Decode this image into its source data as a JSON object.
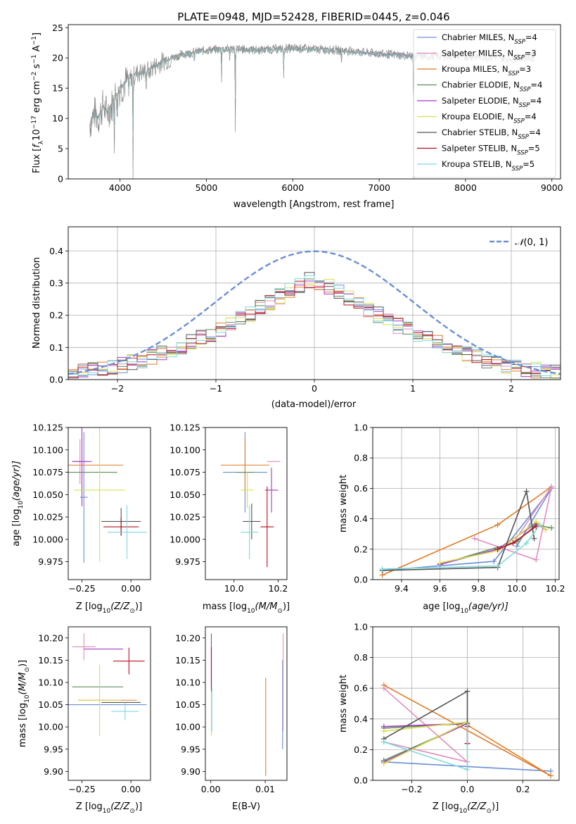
{
  "figure": {
    "title": "PLATE=0948, MJD=52428, FIBERID=0445, z=0.046"
  },
  "colors": {
    "c1": "#6a8fd6",
    "c2": "#e07b25",
    "c3": "#e48cbd",
    "c4": "#5f8d5f",
    "c5": "#a23bc4",
    "c6": "#d8e04b",
    "c7": "#545454",
    "c8": "#b8101d",
    "c9": "#7fd8dc",
    "spec_gray": "#808080"
  },
  "chart_data": [
    {
      "id": "spectrum",
      "type": "line",
      "xlabel": "wavelength [Angstrom, rest frame]",
      "ylabel_parts": [
        "Flux [",
        "f",
        "λ",
        "10",
        "−17",
        " erg cm",
        "−2",
        " s",
        "−1",
        " A",
        "−1",
        "]"
      ],
      "xlim": [
        3400,
        9100
      ],
      "ylim": [
        0,
        25.5
      ],
      "xticks": [
        4000,
        5000,
        6000,
        7000,
        8000,
        9000
      ],
      "yticks": [
        0,
        5,
        10,
        15,
        20,
        25
      ],
      "legend_placement": "right",
      "legend": [
        {
          "pre": "Chabrier MILES, N",
          "sub": "SSP",
          "post": "=4",
          "color": "c1"
        },
        {
          "pre": "Salpeter MILES, N",
          "sub": "SSP",
          "post": "=3",
          "color": "c3"
        },
        {
          "pre": "Kroupa MILES, N",
          "sub": "SSP",
          "post": "=3",
          "color": "c2"
        },
        {
          "pre": "Chabrier ELODIE, N",
          "sub": "SSP",
          "post": "=4",
          "color": "c4"
        },
        {
          "pre": "Salpeter ELODIE, N",
          "sub": "SSP",
          "post": "=4",
          "color": "c5"
        },
        {
          "pre": "Kroupa ELODIE, N",
          "sub": "SSP",
          "post": "=4",
          "color": "c6"
        },
        {
          "pre": "Chabrier STELIB, N",
          "sub": "SSP",
          "post": "=4",
          "color": "c7"
        },
        {
          "pre": "Salpeter STELIB, N",
          "sub": "SSP",
          "post": "=5",
          "color": "c8"
        },
        {
          "pre": "Kroupa STELIB, N",
          "sub": "SSP",
          "post": "=5",
          "color": "c9"
        }
      ],
      "continuum": {
        "x": [
          3650,
          3700,
          3750,
          3800,
          3850,
          3900,
          3950,
          4000,
          4100,
          4200,
          4300,
          4500,
          4700,
          5000,
          5300,
          5600,
          6000,
          6500,
          7000,
          7400,
          8000,
          8500,
          8800
        ],
        "y": [
          9,
          11,
          10,
          12,
          11,
          12,
          14,
          15,
          16.5,
          17.5,
          17.8,
          19.5,
          20.5,
          21.3,
          21.5,
          21.3,
          21.6,
          21.3,
          20.7,
          20.3,
          20.3,
          20.0,
          20.1
        ]
      },
      "model_extents": {
        "start": 3650,
        "end_miles": 7400,
        "end_elodie": 6800
      },
      "absorption": [
        {
          "x": 3934,
          "d": 8
        },
        {
          "x": 3969,
          "d": 7
        },
        {
          "x": 4102,
          "d": 4
        },
        {
          "x": 4150,
          "d": 17
        },
        {
          "x": 4304,
          "d": 4
        },
        {
          "x": 4341,
          "d": 3
        },
        {
          "x": 4861,
          "d": 2
        },
        {
          "x": 5175,
          "d": 5
        },
        {
          "x": 5270,
          "d": 2
        },
        {
          "x": 5335,
          "d": 14
        },
        {
          "x": 5895,
          "d": 5
        },
        {
          "x": 6563,
          "d": 3
        },
        {
          "x": 7400,
          "d": 20
        }
      ]
    },
    {
      "id": "residuals",
      "type": "step",
      "xlabel": "(data-model)/error",
      "ylabel": "Normed distribution",
      "xlim": [
        -2.5,
        2.5
      ],
      "ylim": [
        0,
        0.475
      ],
      "xticks": [
        -2,
        -1,
        0,
        1,
        2
      ],
      "yticks": [
        0.0,
        0.1,
        0.2,
        0.3,
        0.4
      ],
      "grid": true,
      "legend_placement": "top-right",
      "legend": [
        {
          "label_pre": "𝒩",
          "label_post": "(0, 1)",
          "color": "c1",
          "style": "dashed"
        }
      ],
      "bin_width": 0.1,
      "bin_start": -2.5,
      "base_hist": [
        0.023,
        0.027,
        0.03,
        0.035,
        0.038,
        0.045,
        0.052,
        0.06,
        0.07,
        0.08,
        0.093,
        0.105,
        0.118,
        0.13,
        0.143,
        0.157,
        0.172,
        0.188,
        0.205,
        0.222,
        0.24,
        0.258,
        0.275,
        0.293,
        0.31,
        0.328,
        0.345,
        0.36,
        0.372,
        0.384,
        0.392,
        0.398,
        0.4,
        0.4,
        0.396,
        0.391,
        0.383,
        0.372,
        0.36,
        0.346,
        0.331,
        0.314,
        0.297,
        0.279,
        0.26,
        0.24,
        0.22,
        0.201,
        0.182,
        0.165
      ]
    },
    {
      "id": "age_vs_Z",
      "type": "errorbar",
      "xlabel_pre": "Z [log",
      "xlabel_sub": "10",
      "xlabel_mid": "(Z/Z",
      "xlabel_sun": "⊙",
      "xlabel_post": ")]",
      "ylabel_pre": "age  [log",
      "ylabel_sub": "10",
      "ylabel_post": "(age/yr)]",
      "xlim": [
        -0.32,
        0.1
      ],
      "ylim": [
        9.955,
        10.125
      ],
      "xticks": [
        -0.25,
        0.0
      ],
      "yticks": [
        9.975,
        10.0,
        10.025,
        10.05,
        10.075,
        10.1,
        10.125
      ],
      "points": [
        {
          "x": -0.24,
          "xerr": 0.02,
          "y": 10.047,
          "yerr": 0.073,
          "color": "c1"
        },
        {
          "x": -0.18,
          "xerr": 0.14,
          "y": 10.083,
          "yerr": 0.0,
          "color": "c2"
        },
        {
          "x": -0.26,
          "xerr": 0.04,
          "y": 10.087,
          "yerr": 0.025,
          "color": "c3"
        },
        {
          "x": -0.22,
          "xerr": 0.15,
          "y": 10.075,
          "yerr": 0.0,
          "color": "c4"
        },
        {
          "x": -0.25,
          "xerr": 0.05,
          "y": 10.087,
          "yerr": 0.05,
          "color": "c5"
        },
        {
          "x": -0.16,
          "xerr": 0.13,
          "y": 10.055,
          "yerr": 0.08,
          "color": "c6"
        },
        {
          "x": -0.05,
          "xerr": 0.1,
          "y": 10.02,
          "yerr": 0.015,
          "color": "c7"
        },
        {
          "x": -0.05,
          "xerr": 0.09,
          "y": 10.014,
          "yerr": 0.01,
          "color": "c8"
        },
        {
          "x": -0.02,
          "xerr": 0.1,
          "y": 10.008,
          "yerr": 0.03,
          "color": "c9"
        }
      ]
    },
    {
      "id": "age_vs_mass",
      "type": "errorbar",
      "xlabel_pre": "mass [log",
      "xlabel_sub": "10",
      "xlabel_mid": "(M/M",
      "xlabel_sun": "⊙",
      "xlabel_post": ")]",
      "xlim": [
        9.87,
        10.24
      ],
      "ylim": [
        9.955,
        10.125
      ],
      "xticks": [
        10.0,
        10.2
      ],
      "yticks": [
        9.975,
        10.0,
        10.025,
        10.05,
        10.075,
        10.1,
        10.125
      ],
      "points": [
        {
          "x": 10.05,
          "xerr": 0.1,
          "y": 10.075,
          "yerr": 0.045,
          "color": "c1"
        },
        {
          "x": 10.05,
          "xerr": 0.11,
          "y": 10.083,
          "yerr": 0.03,
          "color": "c2"
        },
        {
          "x": 10.18,
          "xerr": 0.03,
          "y": 10.087,
          "yerr": 0.0,
          "color": "c3"
        },
        {
          "x": 10.05,
          "xerr": 0.04,
          "y": 10.075,
          "yerr": 0.0,
          "color": "c4"
        },
        {
          "x": 10.17,
          "xerr": 0.03,
          "y": 10.055,
          "yerr": 0.025,
          "color": "c5"
        },
        {
          "x": 10.06,
          "xerr": 0.03,
          "y": 10.055,
          "yerr": 0.02,
          "color": "c6"
        },
        {
          "x": 10.08,
          "xerr": 0.04,
          "y": 10.02,
          "yerr": 0.02,
          "color": "c7"
        },
        {
          "x": 10.15,
          "xerr": 0.03,
          "y": 10.014,
          "yerr": 0.045,
          "color": "c8"
        },
        {
          "x": 10.07,
          "xerr": 0.04,
          "y": 10.008,
          "yerr": 0.03,
          "color": "c9"
        }
      ]
    },
    {
      "id": "mass_weight_vs_age",
      "type": "line",
      "xlabel_pre": "age  [log",
      "xlabel_sub": "10",
      "xlabel_post": "(age/yr)]",
      "ylabel": "mass weight",
      "xlim": [
        9.25,
        10.22
      ],
      "ylim": [
        0,
        1
      ],
      "xticks": [
        9.4,
        9.6,
        9.8,
        10.0,
        10.2
      ],
      "yticks": [
        0.0,
        0.2,
        0.4,
        0.6,
        0.8,
        1.0
      ],
      "grid": true,
      "series": [
        {
          "color": "c1",
          "x": [
            9.3,
            9.88,
            10.18,
            10.0
          ],
          "y": [
            0.06,
            0.12,
            0.6,
            0.22
          ]
        },
        {
          "color": "c2",
          "x": [
            9.3,
            9.9,
            10.18
          ],
          "y": [
            0.03,
            0.36,
            0.61
          ]
        },
        {
          "color": "c3",
          "x": [
            9.78,
            10.1,
            10.18,
            9.98
          ],
          "y": [
            0.27,
            0.13,
            0.61,
            0.24
          ]
        },
        {
          "color": "c4",
          "x": [
            9.6,
            10.0,
            10.1,
            10.18
          ],
          "y": [
            0.1,
            0.25,
            0.36,
            0.34
          ]
        },
        {
          "color": "c5",
          "x": [
            9.6,
            9.9,
            10.1,
            10.15
          ],
          "y": [
            0.1,
            0.2,
            0.37,
            0.33
          ]
        },
        {
          "color": "c6",
          "x": [
            9.6,
            9.9,
            10.1,
            10.15
          ],
          "y": [
            0.11,
            0.19,
            0.38,
            0.33
          ]
        },
        {
          "color": "c7",
          "x": [
            9.3,
            9.9,
            10.05,
            10.09
          ],
          "y": [
            0.06,
            0.08,
            0.58,
            0.27
          ]
        },
        {
          "color": "c8",
          "x": [
            9.9,
            9.98,
            10.1
          ],
          "y": [
            0.2,
            0.24,
            0.35
          ]
        },
        {
          "color": "c9",
          "x": [
            9.3,
            9.9,
            10.05,
            10.12
          ],
          "y": [
            0.07,
            0.09,
            0.24,
            0.36
          ]
        }
      ]
    },
    {
      "id": "mass_vs_Z",
      "type": "errorbar",
      "xlabel_pre": "Z [log",
      "xlabel_sub": "10",
      "xlabel_mid": "(Z/Z",
      "xlabel_sun": "⊙",
      "xlabel_post": ")]",
      "ylabel_pre": "mass [log",
      "ylabel_sub": "10",
      "ylabel_mid": "(M/M",
      "ylabel_sun": "⊙",
      "ylabel_post": ")]",
      "xlim": [
        -0.32,
        0.1
      ],
      "ylim": [
        9.88,
        10.225
      ],
      "xticks": [
        -0.25,
        0.0
      ],
      "yticks": [
        9.9,
        9.95,
        10.0,
        10.05,
        10.1,
        10.15,
        10.2
      ],
      "points": [
        {
          "x": -0.12,
          "xerr": 0.2,
          "y": 10.05,
          "yerr": 0.0,
          "color": "c1"
        },
        {
          "x": -0.12,
          "xerr": 0.15,
          "y": 10.06,
          "yerr": 0.0,
          "color": "c2"
        },
        {
          "x": -0.24,
          "xerr": 0.06,
          "y": 10.18,
          "yerr": 0.03,
          "color": "c3"
        },
        {
          "x": -0.17,
          "xerr": 0.13,
          "y": 10.09,
          "yerr": 0.0,
          "color": "c4"
        },
        {
          "x": -0.14,
          "xerr": 0.1,
          "y": 10.175,
          "yerr": 0.0,
          "color": "c5"
        },
        {
          "x": -0.16,
          "xerr": 0.11,
          "y": 10.06,
          "yerr": 0.08,
          "color": "c6"
        },
        {
          "x": -0.05,
          "xerr": 0.1,
          "y": 10.055,
          "yerr": 0.0,
          "color": "c7"
        },
        {
          "x": -0.01,
          "xerr": 0.08,
          "y": 10.148,
          "yerr": 0.03,
          "color": "c8"
        },
        {
          "x": -0.03,
          "xerr": 0.07,
          "y": 10.035,
          "yerr": 0.02,
          "color": "c9"
        }
      ]
    },
    {
      "id": "mass_vs_ebv",
      "type": "errorbar",
      "xlabel": "E(B-V)",
      "xlim": [
        -0.001,
        0.014
      ],
      "ylim": [
        9.88,
        10.225
      ],
      "xticks": [
        0.0,
        0.01
      ],
      "yticks": [
        9.9,
        9.95,
        10.0,
        10.05,
        10.1,
        10.15,
        10.2
      ],
      "points": [
        {
          "x": 0.0132,
          "xerr": 0,
          "y": 10.05,
          "yerr": 0.1,
          "color": "c1"
        },
        {
          "x": 0.0101,
          "xerr": 0,
          "y": 10.0,
          "yerr": 0.11,
          "color": "c2"
        },
        {
          "x": 0.0133,
          "xerr": 0,
          "y": 10.1,
          "yerr": 0.11,
          "color": "c3"
        },
        {
          "x": 0.0001,
          "xerr": 0,
          "y": 10.15,
          "yerr": 0.06,
          "color": "c5"
        },
        {
          "x": 0.0001,
          "xerr": 0,
          "y": 10.04,
          "yerr": 0.06,
          "color": "c6"
        },
        {
          "x": 0.0001,
          "xerr": 0,
          "y": 10.13,
          "yerr": 0.05,
          "color": "c8"
        },
        {
          "x": 0.0002,
          "xerr": 0,
          "y": 10.04,
          "yerr": 0.05,
          "color": "c9"
        }
      ]
    },
    {
      "id": "mass_weight_vs_Z",
      "type": "line",
      "xlabel_pre": "Z [log",
      "xlabel_sub": "10",
      "xlabel_mid": "(Z/Z",
      "xlabel_sun": "⊙",
      "xlabel_post": ")]",
      "ylabel": "mass weight",
      "xlim": [
        -0.34,
        0.33
      ],
      "ylim": [
        0,
        1
      ],
      "xticks": [
        -0.2,
        0.0,
        0.2
      ],
      "yticks": [
        0.0,
        0.2,
        0.4,
        0.6,
        0.8,
        1.0
      ],
      "grid": true,
      "series": [
        {
          "color": "c1",
          "x": [
            -0.3,
            0.0,
            0.3
          ],
          "y": [
            0.12,
            0.09,
            0.06
          ]
        },
        {
          "color": "c2",
          "x": [
            -0.3,
            0.3,
            0.0
          ],
          "y": [
            0.62,
            0.03,
            0.36
          ]
        },
        {
          "color": "c3",
          "x": [
            -0.3,
            0.0,
            -0.3
          ],
          "y": [
            0.6,
            0.12,
            0.25
          ]
        },
        {
          "color": "c4",
          "x": [
            -0.3,
            0.0,
            -0.3
          ],
          "y": [
            0.34,
            0.37,
            0.13
          ]
        },
        {
          "color": "c5",
          "x": [
            -0.3,
            0.0,
            -0.3
          ],
          "y": [
            0.35,
            0.37,
            0.12
          ]
        },
        {
          "color": "c6",
          "x": [
            -0.3,
            0.0,
            -0.3
          ],
          "y": [
            0.32,
            0.38,
            0.11
          ]
        },
        {
          "color": "c7",
          "x": [
            -0.3,
            0.0,
            0.0
          ],
          "y": [
            0.27,
            0.58,
            0.24
          ]
        },
        {
          "color": "c8",
          "x": [
            0.0,
            0.0
          ],
          "y": [
            0.35,
            0.24
          ]
        },
        {
          "color": "c9",
          "x": [
            -0.3,
            0.0,
            0.0
          ],
          "y": [
            0.25,
            0.07,
            0.36
          ]
        }
      ]
    }
  ]
}
